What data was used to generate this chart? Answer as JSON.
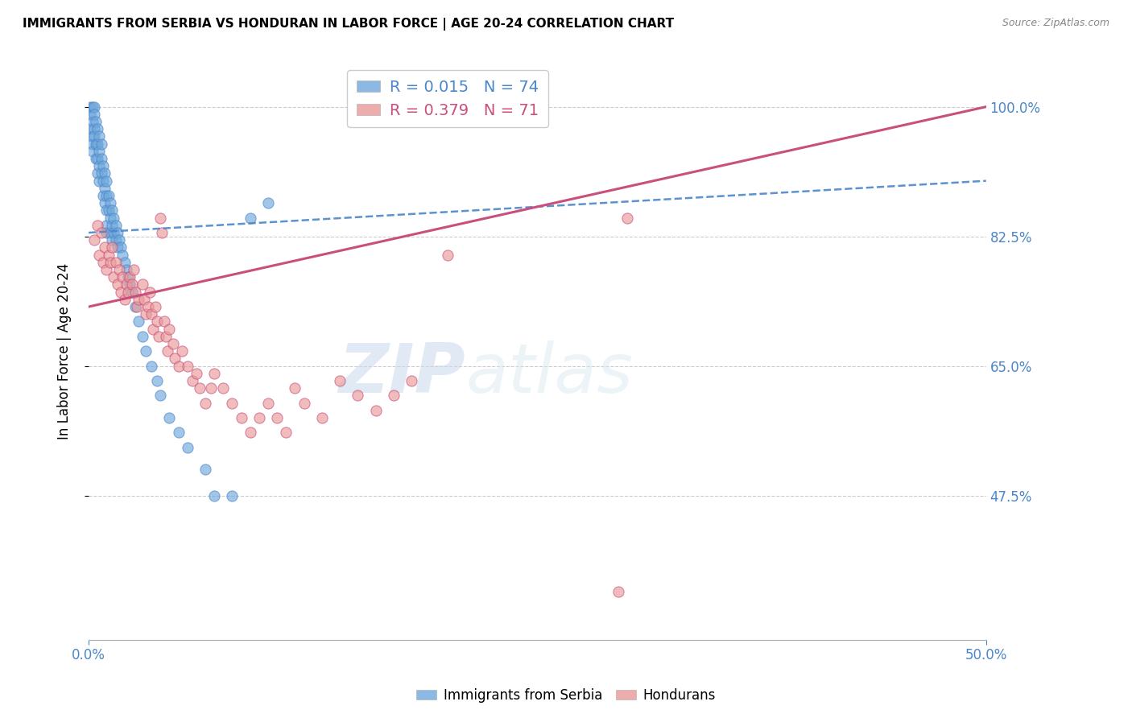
{
  "title": "IMMIGRANTS FROM SERBIA VS HONDURAN IN LABOR FORCE | AGE 20-24 CORRELATION CHART",
  "source": "Source: ZipAtlas.com",
  "ylabel": "In Labor Force | Age 20-24",
  "xlim": [
    0.0,
    0.5
  ],
  "ylim": [
    0.28,
    1.06
  ],
  "xtick_positions": [
    0.0,
    0.5
  ],
  "xtick_labels": [
    "0.0%",
    "50.0%"
  ],
  "ytick_vals": [
    0.475,
    0.65,
    0.825,
    1.0
  ],
  "ytick_labels": [
    "47.5%",
    "65.0%",
    "82.5%",
    "100.0%"
  ],
  "serbia_color": "#6fa8dc",
  "honduras_color": "#ea9999",
  "serbia_line_color": "#4a86c8",
  "honduras_line_color": "#c94f7c",
  "serbia_R": 0.015,
  "serbia_N": 74,
  "honduras_R": 0.379,
  "honduras_N": 71,
  "legend_label_serbia": "Immigrants from Serbia",
  "legend_label_honduras": "Hondurans",
  "axis_color": "#4a86c8",
  "grid_color": "#cccccc",
  "background_color": "#ffffff",
  "serbia_x": [
    0.001,
    0.001,
    0.001,
    0.002,
    0.002,
    0.002,
    0.002,
    0.002,
    0.003,
    0.003,
    0.003,
    0.003,
    0.004,
    0.004,
    0.004,
    0.005,
    0.005,
    0.005,
    0.005,
    0.006,
    0.006,
    0.006,
    0.006,
    0.007,
    0.007,
    0.007,
    0.008,
    0.008,
    0.008,
    0.009,
    0.009,
    0.009,
    0.01,
    0.01,
    0.01,
    0.01,
    0.01,
    0.011,
    0.011,
    0.012,
    0.012,
    0.012,
    0.013,
    0.013,
    0.013,
    0.014,
    0.014,
    0.015,
    0.015,
    0.016,
    0.016,
    0.017,
    0.018,
    0.019,
    0.02,
    0.021,
    0.022,
    0.023,
    0.024,
    0.026,
    0.028,
    0.03,
    0.032,
    0.035,
    0.038,
    0.04,
    0.045,
    0.05,
    0.055,
    0.065,
    0.07,
    0.08,
    0.09,
    0.1
  ],
  "serbia_y": [
    1.0,
    0.99,
    0.97,
    1.0,
    0.98,
    0.96,
    0.95,
    0.94,
    1.0,
    0.99,
    0.97,
    0.96,
    0.98,
    0.95,
    0.93,
    0.97,
    0.95,
    0.93,
    0.91,
    0.96,
    0.94,
    0.92,
    0.9,
    0.95,
    0.93,
    0.91,
    0.92,
    0.9,
    0.88,
    0.91,
    0.89,
    0.87,
    0.9,
    0.88,
    0.86,
    0.84,
    0.83,
    0.88,
    0.86,
    0.87,
    0.85,
    0.83,
    0.86,
    0.84,
    0.82,
    0.85,
    0.83,
    0.84,
    0.82,
    0.83,
    0.81,
    0.82,
    0.81,
    0.8,
    0.79,
    0.78,
    0.77,
    0.76,
    0.75,
    0.73,
    0.71,
    0.69,
    0.67,
    0.65,
    0.63,
    0.61,
    0.58,
    0.56,
    0.54,
    0.51,
    0.475,
    0.475,
    0.85,
    0.87
  ],
  "honduras_x": [
    0.003,
    0.005,
    0.006,
    0.007,
    0.008,
    0.009,
    0.01,
    0.011,
    0.012,
    0.013,
    0.014,
    0.015,
    0.016,
    0.017,
    0.018,
    0.019,
    0.02,
    0.021,
    0.022,
    0.023,
    0.024,
    0.025,
    0.026,
    0.027,
    0.028,
    0.03,
    0.031,
    0.032,
    0.033,
    0.034,
    0.035,
    0.036,
    0.037,
    0.038,
    0.039,
    0.04,
    0.041,
    0.042,
    0.043,
    0.044,
    0.045,
    0.047,
    0.048,
    0.05,
    0.052,
    0.055,
    0.058,
    0.06,
    0.062,
    0.065,
    0.068,
    0.07,
    0.075,
    0.08,
    0.085,
    0.09,
    0.095,
    0.1,
    0.105,
    0.11,
    0.115,
    0.12,
    0.13,
    0.14,
    0.15,
    0.16,
    0.17,
    0.18,
    0.2,
    0.295,
    0.3
  ],
  "honduras_y": [
    0.82,
    0.84,
    0.8,
    0.83,
    0.79,
    0.81,
    0.78,
    0.8,
    0.79,
    0.81,
    0.77,
    0.79,
    0.76,
    0.78,
    0.75,
    0.77,
    0.74,
    0.76,
    0.75,
    0.77,
    0.76,
    0.78,
    0.75,
    0.73,
    0.74,
    0.76,
    0.74,
    0.72,
    0.73,
    0.75,
    0.72,
    0.7,
    0.73,
    0.71,
    0.69,
    0.85,
    0.83,
    0.71,
    0.69,
    0.67,
    0.7,
    0.68,
    0.66,
    0.65,
    0.67,
    0.65,
    0.63,
    0.64,
    0.62,
    0.6,
    0.62,
    0.64,
    0.62,
    0.6,
    0.58,
    0.56,
    0.58,
    0.6,
    0.58,
    0.56,
    0.62,
    0.6,
    0.58,
    0.63,
    0.61,
    0.59,
    0.61,
    0.63,
    0.8,
    0.345,
    0.85
  ],
  "serbia_trend": [
    0.0,
    0.5,
    0.83,
    0.9
  ],
  "honduras_trend": [
    0.0,
    0.5,
    0.73,
    1.0
  ]
}
